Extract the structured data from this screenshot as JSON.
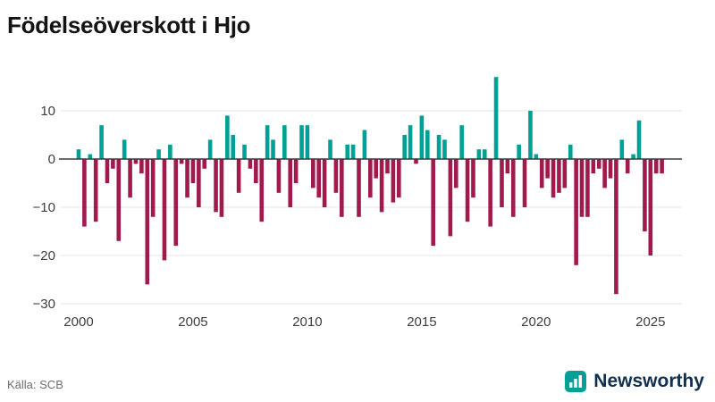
{
  "header": {
    "title": "Födelseöverskott i Hjo"
  },
  "footer": {
    "source": "Källa: SCB",
    "brand": {
      "name": "Newsworthy",
      "icon": "bar-chart-logo-icon",
      "icon_color": "#00A096",
      "text_color": "#10304F"
    }
  },
  "chart_data": {
    "type": "bar",
    "title": "Födelseöverskott i Hjo",
    "subtitle": "",
    "xlabel": "",
    "ylabel": "",
    "frequency": "quarterly",
    "legend_position": "none",
    "grid": "horizontal",
    "xlim": [
      1999.5,
      2026.5
    ],
    "ylim": [
      -31,
      18
    ],
    "yticks": [
      10,
      0,
      -10,
      -20,
      -30
    ],
    "xticks": [
      2000,
      2005,
      2010,
      2015,
      2020,
      2025
    ],
    "colors": {
      "positive": "#00A096",
      "negative": "#A01A4E",
      "gridline": "#e4e4e4",
      "zero_line": "#3b3b3b",
      "tick_label": "#3d3d3d"
    },
    "x": [
      2000,
      2000.25,
      2000.5,
      2000.75,
      2001,
      2001.25,
      2001.5,
      2001.75,
      2002,
      2002.25,
      2002.5,
      2002.75,
      2003,
      2003.25,
      2003.5,
      2003.75,
      2004,
      2004.25,
      2004.5,
      2004.75,
      2005,
      2005.25,
      2005.5,
      2005.75,
      2006,
      2006.25,
      2006.5,
      2006.75,
      2007,
      2007.25,
      2007.5,
      2007.75,
      2008,
      2008.25,
      2008.5,
      2008.75,
      2009,
      2009.25,
      2009.5,
      2009.75,
      2010,
      2010.25,
      2010.5,
      2010.75,
      2011,
      2011.25,
      2011.5,
      2011.75,
      2012,
      2012.25,
      2012.5,
      2012.75,
      2013,
      2013.25,
      2013.5,
      2013.75,
      2014,
      2014.25,
      2014.5,
      2014.75,
      2015,
      2015.25,
      2015.5,
      2015.75,
      2016,
      2016.25,
      2016.5,
      2016.75,
      2017,
      2017.25,
      2017.5,
      2017.75,
      2018,
      2018.25,
      2018.5,
      2018.75,
      2019,
      2019.25,
      2019.5,
      2019.75,
      2020,
      2020.25,
      2020.5,
      2020.75,
      2021,
      2021.25,
      2021.5,
      2021.75,
      2022,
      2022.25,
      2022.5,
      2022.75,
      2023,
      2023.25,
      2023.5,
      2023.75,
      2024,
      2024.25,
      2024.5,
      2024.75,
      2025,
      2025.25,
      2025.5
    ],
    "values": [
      2,
      -14,
      1,
      -13,
      7,
      -5,
      -2,
      -17,
      4,
      -8,
      -1,
      -3,
      -26,
      -12,
      2,
      -21,
      3,
      -18,
      -1,
      -8,
      -5,
      -10,
      -2,
      4,
      -11,
      -12,
      9,
      5,
      -7,
      3,
      -2,
      -5,
      -13,
      7,
      4,
      -7,
      7,
      -10,
      -5,
      7,
      7,
      -6,
      -8,
      -10,
      4,
      -7,
      -12,
      3,
      3,
      -12,
      6,
      -8,
      -4,
      -11,
      -3,
      -9,
      -8,
      5,
      7,
      -1,
      9,
      6,
      -18,
      5,
      4,
      -16,
      -6,
      7,
      -13,
      -8,
      2,
      2,
      -14,
      17,
      -10,
      -3,
      -12,
      3,
      -10,
      10,
      1,
      -6,
      -4,
      -8,
      -7,
      -6,
      3,
      -22,
      -12,
      -12,
      -3,
      -2,
      -6,
      -4,
      -28,
      4,
      -3,
      1,
      8,
      -15,
      -20,
      -3,
      -3
    ]
  }
}
